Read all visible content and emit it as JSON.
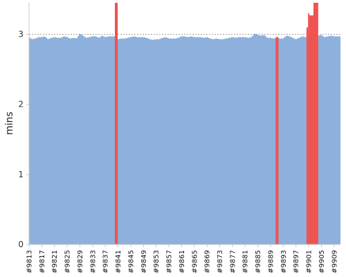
{
  "chart_data": {
    "type": "area",
    "title": "",
    "xlabel": "",
    "ylabel": "mins",
    "ylim": [
      0,
      3.45
    ],
    "yticks": [
      0,
      1,
      2,
      3
    ],
    "grid": true,
    "reference_line": 3.0,
    "x_start": 9813,
    "x_end": 9911,
    "xtick_prefix": "#",
    "xticks": [
      9813,
      9817,
      9821,
      9825,
      9829,
      9833,
      9837,
      9841,
      9845,
      9849,
      9853,
      9857,
      9861,
      9865,
      9869,
      9873,
      9877,
      9881,
      9885,
      9889,
      9893,
      9897,
      9901,
      9905,
      9909
    ],
    "series": [
      {
        "color": "#8eb0dc",
        "baseline_values": [
          2.96,
          2.93,
          2.94,
          2.96,
          2.96,
          2.97,
          2.93,
          2.95,
          2.96,
          2.95,
          2.95,
          2.97,
          2.96,
          2.94,
          2.95,
          2.94,
          3.01,
          2.98,
          2.95,
          2.96,
          2.97,
          2.97,
          2.95,
          2.98,
          2.96,
          2.97,
          2.97,
          2.97,
          2.93,
          2.94,
          2.94,
          2.95,
          2.96,
          2.97,
          2.96,
          2.96,
          2.96,
          2.95,
          2.93,
          2.92,
          2.93,
          2.93,
          2.95,
          2.96,
          2.94,
          2.94,
          2.94,
          2.95,
          2.97,
          2.97,
          2.96,
          2.97,
          2.96,
          2.96,
          2.96,
          2.95,
          2.96,
          2.94,
          2.93,
          2.94,
          2.93,
          2.93,
          2.94,
          2.95,
          2.96,
          2.95,
          2.96,
          2.96,
          2.96,
          2.95,
          2.96,
          3.01,
          2.99,
          2.98,
          2.99,
          2.95,
          2.95,
          2.94,
          2.95,
          2.94,
          2.94,
          2.98,
          2.97,
          2.95,
          2.93,
          2.95,
          2.97,
          2.96,
          2.96,
          2.99,
          2.97,
          2.98,
          2.99,
          2.96,
          2.97,
          2.98,
          2.97,
          2.97,
          2.97
        ]
      },
      {
        "color": "#ef5350",
        "spikes": [
          {
            "from": 9840.0,
            "to": 9840.9,
            "value": 3.45
          },
          {
            "from": 9890.6,
            "to": 9891.5,
            "value": 2.96
          },
          {
            "from": 9900.3,
            "to": 9900.8,
            "value": 3.1
          },
          {
            "from": 9900.8,
            "to": 9901.2,
            "value": 3.3
          },
          {
            "from": 9901.2,
            "to": 9902.5,
            "value": 3.27
          },
          {
            "from": 9902.5,
            "to": 9904.0,
            "value": 3.45
          }
        ]
      }
    ]
  }
}
